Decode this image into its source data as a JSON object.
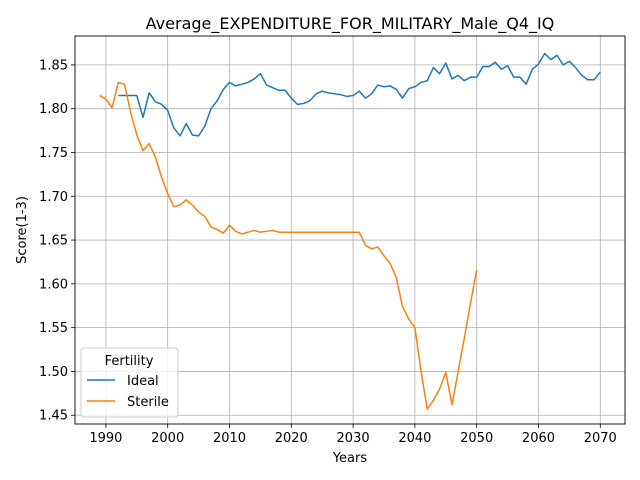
{
  "chart_data": {
    "type": "line",
    "title": "Average_EXPENDITURE_FOR_MILITARY_Male_Q4_IQ",
    "xlabel": "Years",
    "ylabel": "Score(1-3)",
    "xlim": [
      1985,
      2074
    ],
    "ylim": [
      1.44,
      1.883
    ],
    "xticks": [
      1990,
      2000,
      2010,
      2020,
      2030,
      2040,
      2050,
      2060,
      2070
    ],
    "yticks": [
      1.45,
      1.5,
      1.55,
      1.6,
      1.65,
      1.7,
      1.75,
      1.8,
      1.85
    ],
    "ytick_labels": [
      "1.45",
      "1.50",
      "1.55",
      "1.60",
      "1.65",
      "1.70",
      "1.75",
      "1.80",
      "1.85"
    ],
    "grid": true,
    "legend": {
      "title": "Fertility",
      "position": "lower-left"
    },
    "series": [
      {
        "name": "Ideal",
        "color": "#1f77b4",
        "x": [
          1992,
          1993,
          1994,
          1995,
          1996,
          1997,
          1998,
          1999,
          2000,
          2001,
          2002,
          2003,
          2004,
          2005,
          2006,
          2007,
          2008,
          2009,
          2010,
          2011,
          2012,
          2013,
          2014,
          2015,
          2016,
          2017,
          2018,
          2019,
          2020,
          2021,
          2022,
          2023,
          2024,
          2025,
          2026,
          2027,
          2028,
          2029,
          2030,
          2031,
          2032,
          2033,
          2034,
          2035,
          2036,
          2037,
          2038,
          2039,
          2040,
          2041,
          2042,
          2043,
          2044,
          2045,
          2046,
          2047,
          2048,
          2049,
          2050,
          2051,
          2052,
          2053,
          2054,
          2055,
          2056,
          2057,
          2058,
          2059,
          2060,
          2061,
          2062,
          2063,
          2064,
          2065,
          2066,
          2067,
          2068,
          2069,
          2070
        ],
        "values": [
          1.815,
          1.815,
          1.815,
          1.815,
          1.79,
          1.818,
          1.808,
          1.805,
          1.798,
          1.778,
          1.769,
          1.783,
          1.77,
          1.769,
          1.78,
          1.8,
          1.809,
          1.822,
          1.83,
          1.826,
          1.828,
          1.83,
          1.834,
          1.84,
          1.827,
          1.824,
          1.821,
          1.821,
          1.812,
          1.805,
          1.806,
          1.809,
          1.817,
          1.82,
          1.818,
          1.817,
          1.816,
          1.814,
          1.815,
          1.82,
          1.812,
          1.817,
          1.827,
          1.825,
          1.826,
          1.822,
          1.812,
          1.823,
          1.825,
          1.83,
          1.832,
          1.847,
          1.84,
          1.852,
          1.834,
          1.838,
          1.832,
          1.836,
          1.836,
          1.848,
          1.848,
          1.853,
          1.845,
          1.849,
          1.836,
          1.836,
          1.828,
          1.845,
          1.851,
          1.863,
          1.856,
          1.861,
          1.85,
          1.854,
          1.847,
          1.838,
          1.833,
          1.833,
          1.842
        ]
      },
      {
        "name": "Sterile",
        "color": "#ff7f0e",
        "x": [
          1989,
          1990,
          1991,
          1992,
          1993,
          1994,
          1995,
          1996,
          1997,
          1998,
          1999,
          2000,
          2001,
          2002,
          2003,
          2004,
          2005,
          2006,
          2007,
          2008,
          2009,
          2010,
          2011,
          2012,
          2013,
          2014,
          2015,
          2016,
          2017,
          2018,
          2019,
          2020,
          2021,
          2022,
          2023,
          2024,
          2025,
          2026,
          2027,
          2028,
          2029,
          2030,
          2031,
          2032,
          2033,
          2034,
          2035,
          2036,
          2037,
          2038,
          2039,
          2040,
          2041,
          2042,
          2043,
          2044,
          2045,
          2046,
          2047,
          2048,
          2049,
          2050
        ],
        "values": [
          1.815,
          1.811,
          1.801,
          1.83,
          1.828,
          1.796,
          1.77,
          1.752,
          1.76,
          1.745,
          1.722,
          1.703,
          1.688,
          1.69,
          1.696,
          1.69,
          1.682,
          1.677,
          1.665,
          1.662,
          1.658,
          1.667,
          1.66,
          1.657,
          1.659,
          1.661,
          1.659,
          1.66,
          1.661,
          1.659,
          1.659,
          1.659,
          1.659,
          1.659,
          1.659,
          1.659,
          1.659,
          1.659,
          1.659,
          1.659,
          1.659,
          1.659,
          1.659,
          1.644,
          1.64,
          1.642,
          1.632,
          1.623,
          1.607,
          1.574,
          1.56,
          1.55,
          1.5,
          1.457,
          1.467,
          1.48,
          1.499,
          1.462,
          1.5,
          1.538,
          1.578,
          1.616
        ]
      }
    ]
  }
}
